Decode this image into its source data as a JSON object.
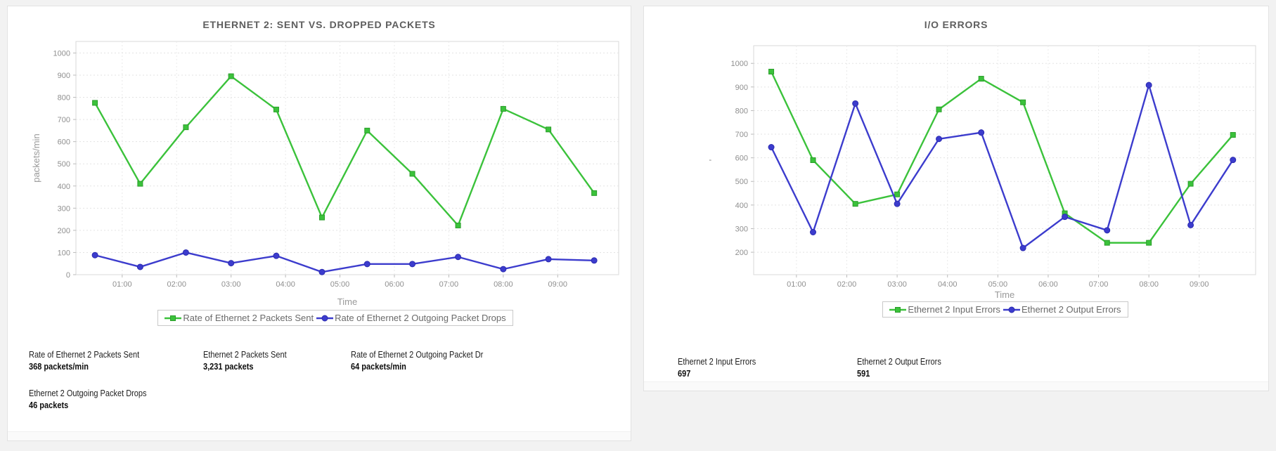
{
  "left_panel": {
    "stats": [
      {
        "label": "Rate of Ethernet 2 Packets Sent",
        "value": "368 packets/min"
      },
      {
        "label": "Ethernet 2 Packets Sent",
        "value": "3,231 packets"
      },
      {
        "label": "Rate of Ethernet 2 Outgoing Packet Dr",
        "value": "64 packets/min"
      },
      {
        "label": "Ethernet 2 Outgoing Packet Drops",
        "value": "46 packets"
      }
    ]
  },
  "right_panel": {
    "stats": [
      {
        "label": "Ethernet 2 Input Errors",
        "value": "697"
      },
      {
        "label": "Ethernet 2 Output Errors",
        "value": "591"
      }
    ]
  },
  "colors": {
    "series_green": "#3bc23b",
    "series_blue": "#3c3ccd",
    "grid": "#e3e3e3",
    "axis_text": "#8f8f8f",
    "title_text": "#5e5e5e"
  },
  "chart_data": [
    {
      "type": "line",
      "title": "ETHERNET 2: SENT VS. DROPPED PACKETS",
      "xlabel": "Time",
      "ylabel": "packets/min",
      "x": [
        0.5,
        1.33,
        2.17,
        3,
        3.83,
        4.67,
        5.5,
        6.33,
        7.17,
        8,
        8.83,
        9.67
      ],
      "xlim": [
        0.15,
        10.12
      ],
      "xticks": [
        1,
        2,
        3,
        4,
        5,
        6,
        7,
        8,
        9
      ],
      "xtick_labels": [
        "01:00",
        "02:00",
        "03:00",
        "04:00",
        "05:00",
        "06:00",
        "07:00",
        "08:00",
        "09:00"
      ],
      "ylim": [
        0,
        1052
      ],
      "yticks": [
        0,
        100,
        200,
        300,
        400,
        500,
        600,
        700,
        800,
        900,
        1000
      ],
      "grid": true,
      "legend_position": "bottom",
      "series": [
        {
          "name": "Rate of Ethernet 2 Packets Sent",
          "color": "#3bc23b",
          "edge": "#2a9e2a",
          "marker": "square",
          "values": [
            775,
            410,
            665,
            895,
            745,
            258,
            650,
            455,
            222,
            748,
            655,
            368
          ]
        },
        {
          "name": "Rate of Ethernet 2 Outgoing Packet Drops",
          "color": "#3c3ccd",
          "edge": "#2b2bb0",
          "marker": "circle",
          "values": [
            88,
            35,
            100,
            52,
            85,
            12,
            48,
            48,
            80,
            25,
            70,
            64
          ]
        }
      ]
    },
    {
      "type": "line",
      "title": "I/O ERRORS",
      "xlabel": "Time",
      "ylabel": "'",
      "x": [
        0.5,
        1.33,
        2.17,
        3,
        3.83,
        4.67,
        5.5,
        6.33,
        7.17,
        8,
        8.83,
        9.67
      ],
      "xlim": [
        0.15,
        10.12
      ],
      "xticks": [
        1,
        2,
        3,
        4,
        5,
        6,
        7,
        8,
        9
      ],
      "xtick_labels": [
        "01:00",
        "02:00",
        "03:00",
        "04:00",
        "05:00",
        "06:00",
        "07:00",
        "08:00",
        "09:00"
      ],
      "ylim": [
        105,
        1075
      ],
      "yticks": [
        200,
        300,
        400,
        500,
        600,
        700,
        800,
        900,
        1000
      ],
      "grid": true,
      "legend_position": "bottom",
      "series": [
        {
          "name": "Ethernet 2 Input Errors",
          "color": "#3bc23b",
          "edge": "#2a9e2a",
          "marker": "square",
          "values": [
            965,
            590,
            405,
            445,
            805,
            935,
            835,
            365,
            240,
            240,
            490,
            697
          ]
        },
        {
          "name": "Ethernet 2 Output Errors",
          "color": "#3c3ccd",
          "edge": "#2b2bb0",
          "marker": "circle",
          "values": [
            645,
            285,
            830,
            405,
            680,
            707,
            218,
            350,
            293,
            908,
            315,
            591
          ]
        }
      ]
    }
  ]
}
